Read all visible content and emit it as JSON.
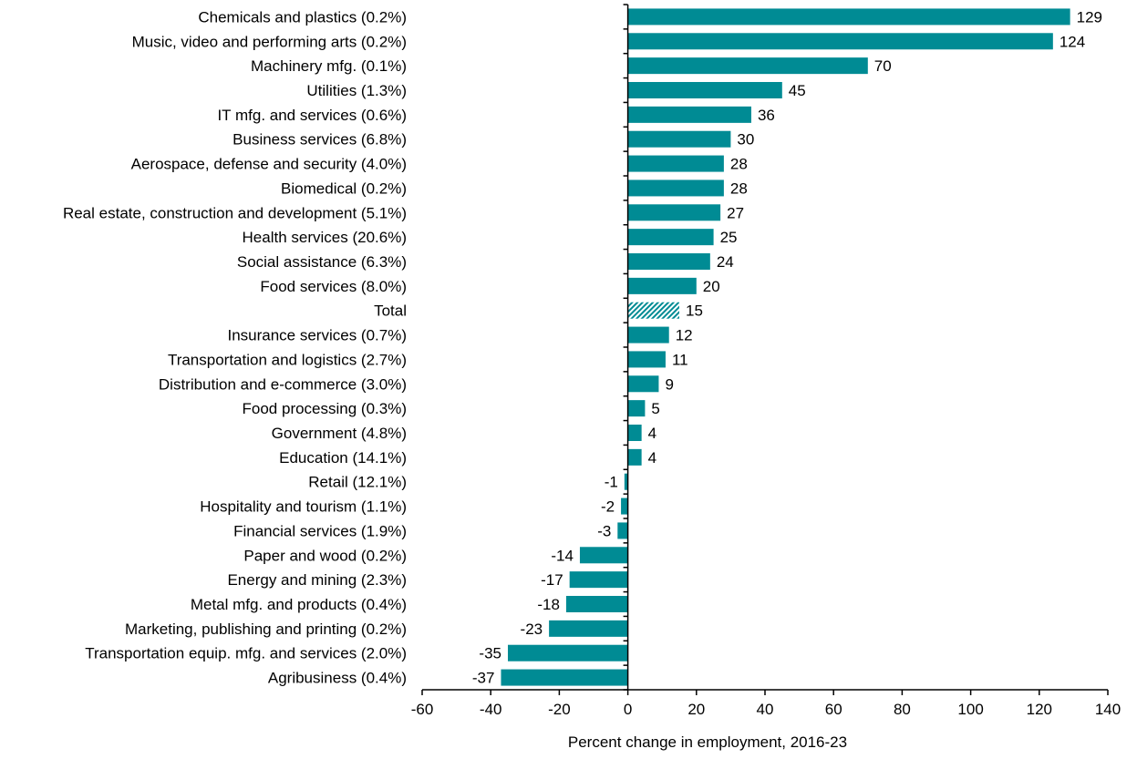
{
  "chart_data": {
    "type": "bar",
    "orientation": "horizontal",
    "xlabel": "Percent change  in employment, 2016-23",
    "xlim": [
      -60,
      140
    ],
    "xticks": [
      -60,
      -40,
      -20,
      0,
      20,
      40,
      60,
      80,
      100,
      120,
      140
    ],
    "grid": false,
    "bar_color": "#008B94",
    "highlight_category": "Total",
    "highlight_style": "hatched",
    "categories": [
      "Chemicals and plastics (0.2%)",
      "Music, video and performing arts (0.2%)",
      "Machinery mfg. (0.1%)",
      "Utilities (1.3%)",
      "IT mfg. and services (0.6%)",
      "Business services (6.8%)",
      "Aerospace, defense and security (4.0%)",
      "Biomedical (0.2%)",
      "Real estate, construction and development (5.1%)",
      "Health services (20.6%)",
      "Social assistance (6.3%)",
      "Food services (8.0%)",
      "Total",
      "Insurance services (0.7%)",
      "Transportation and logistics (2.7%)",
      "Distribution and e-commerce (3.0%)",
      "Food processing (0.3%)",
      "Government (4.8%)",
      "Education (14.1%)",
      "Retail (12.1%)",
      "Hospitality and tourism (1.1%)",
      "Financial services (1.9%)",
      "Paper and wood (0.2%)",
      "Energy and mining (2.3%)",
      "Metal mfg. and products (0.4%)",
      "Marketing, publishing and printing (0.2%)",
      "Transportation equip. mfg. and services (2.0%)",
      "Agribusiness (0.4%)"
    ],
    "values": [
      129,
      124,
      70,
      45,
      36,
      30,
      28,
      28,
      27,
      25,
      24,
      20,
      15,
      12,
      11,
      9,
      5,
      4,
      4,
      -1,
      -2,
      -3,
      -14,
      -17,
      -18,
      -23,
      -35,
      -37
    ]
  }
}
